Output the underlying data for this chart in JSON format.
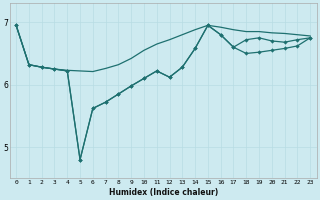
{
  "xlabel": "Humidex (Indice chaleur)",
  "bg_color": "#cdeaf0",
  "grid_color": "#b8dce4",
  "line_color": "#1e7070",
  "xlim": [
    -0.5,
    23.5
  ],
  "ylim": [
    4.5,
    7.3
  ],
  "yticks": [
    5,
    6,
    7
  ],
  "xticks": [
    0,
    1,
    2,
    3,
    4,
    5,
    6,
    7,
    8,
    9,
    10,
    11,
    12,
    13,
    14,
    15,
    16,
    17,
    18,
    19,
    20,
    21,
    22,
    23
  ],
  "series1_x": [
    0,
    1,
    2,
    3,
    4,
    5,
    6,
    7,
    8,
    9,
    10,
    11,
    12,
    13,
    14,
    15,
    16,
    17,
    18,
    19,
    20,
    21,
    22,
    23
  ],
  "series1_y": [
    6.95,
    6.32,
    6.28,
    6.25,
    6.23,
    6.22,
    6.21,
    6.26,
    6.32,
    6.42,
    6.55,
    6.65,
    6.72,
    6.8,
    6.88,
    6.95,
    6.92,
    6.88,
    6.85,
    6.85,
    6.83,
    6.82,
    6.8,
    6.78
  ],
  "series2_x": [
    0,
    1,
    2,
    3,
    4,
    5,
    6,
    7,
    8,
    9,
    10,
    11,
    12,
    13,
    14,
    15,
    16,
    17,
    18,
    19,
    20,
    21,
    22,
    23
  ],
  "series2_y": [
    6.95,
    6.32,
    6.28,
    6.25,
    6.22,
    4.8,
    5.62,
    5.72,
    5.85,
    5.98,
    6.1,
    6.22,
    6.12,
    6.28,
    6.58,
    6.95,
    6.8,
    6.6,
    6.72,
    6.75,
    6.7,
    6.68,
    6.72,
    6.75
  ],
  "series3_x": [
    0,
    1,
    2,
    3,
    4,
    5,
    6,
    7,
    8,
    9,
    10,
    11,
    12,
    13,
    14,
    15,
    16,
    17,
    18,
    19,
    20,
    21,
    22,
    23
  ],
  "series3_y": [
    6.95,
    6.32,
    6.28,
    6.25,
    6.22,
    4.8,
    5.62,
    5.72,
    5.85,
    5.98,
    6.1,
    6.22,
    6.12,
    6.28,
    6.58,
    6.95,
    6.8,
    6.6,
    6.5,
    6.52,
    6.55,
    6.58,
    6.62,
    6.75
  ]
}
